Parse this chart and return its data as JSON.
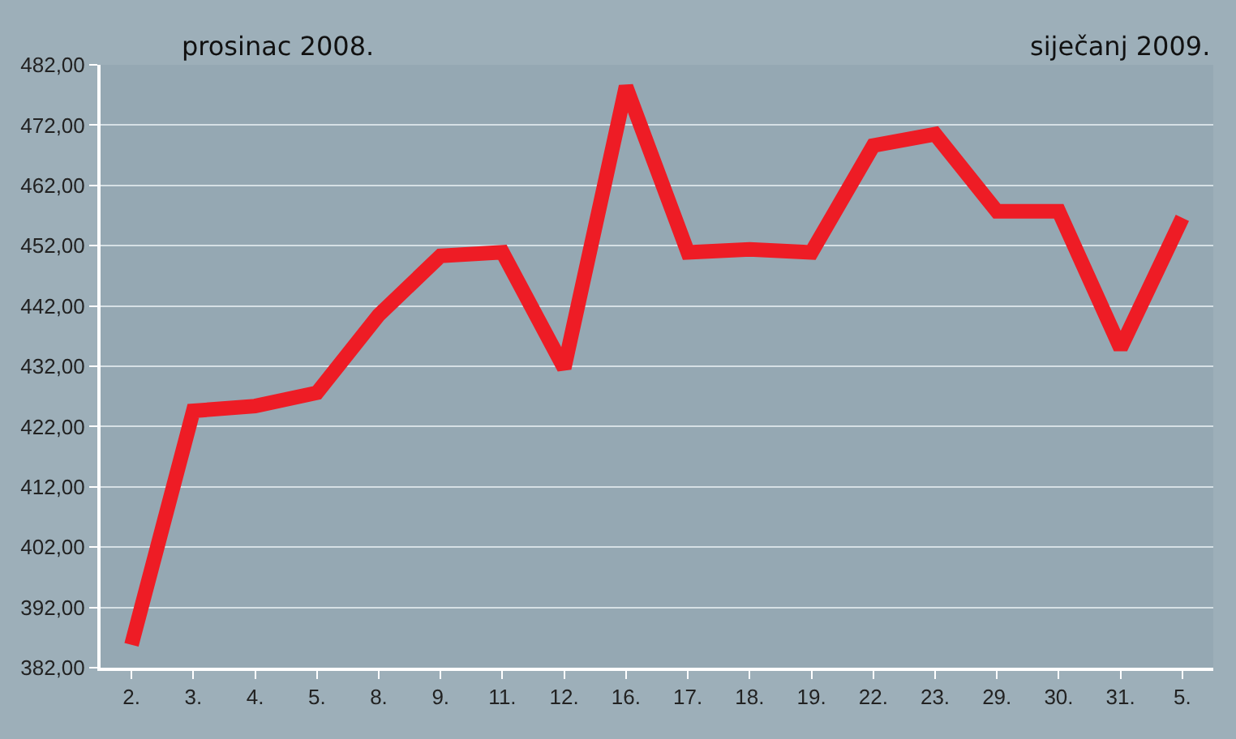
{
  "chart_data": {
    "type": "line",
    "annotations": [
      "prosinac 2008.",
      "siječanj 2009."
    ],
    "categories": [
      "2.",
      "3.",
      "4.",
      "5.",
      "8.",
      "9.",
      "11.",
      "12.",
      "16.",
      "17.",
      "18.",
      "19.",
      "22.",
      "23.",
      "29.",
      "30.",
      "31.",
      "5."
    ],
    "series": [
      {
        "color": "#ee1c25",
        "values": [
          385.8,
          424.6,
          425.4,
          427.6,
          440.5,
          450.3,
          450.9,
          431.7,
          478.4,
          450.9,
          451.4,
          450.9,
          468.6,
          470.5,
          457.7,
          457.7,
          435,
          456.6
        ]
      }
    ],
    "ylim": [
      382,
      482
    ],
    "yticks": [
      {
        "value": 382,
        "label": "382,00"
      },
      {
        "value": 392,
        "label": "392,00"
      },
      {
        "value": 402,
        "label": "402,00"
      },
      {
        "value": 412,
        "label": "412,00"
      },
      {
        "value": 422,
        "label": "422,00"
      },
      {
        "value": 432,
        "label": "432,00"
      },
      {
        "value": 442,
        "label": "442,00"
      },
      {
        "value": 452,
        "label": "452,00"
      },
      {
        "value": 462,
        "label": "462,00"
      },
      {
        "value": 472,
        "label": "472,00"
      },
      {
        "value": 482,
        "label": "482,00"
      }
    ],
    "grid": "y",
    "marker": "none",
    "line_style": "solid",
    "legend": false
  }
}
